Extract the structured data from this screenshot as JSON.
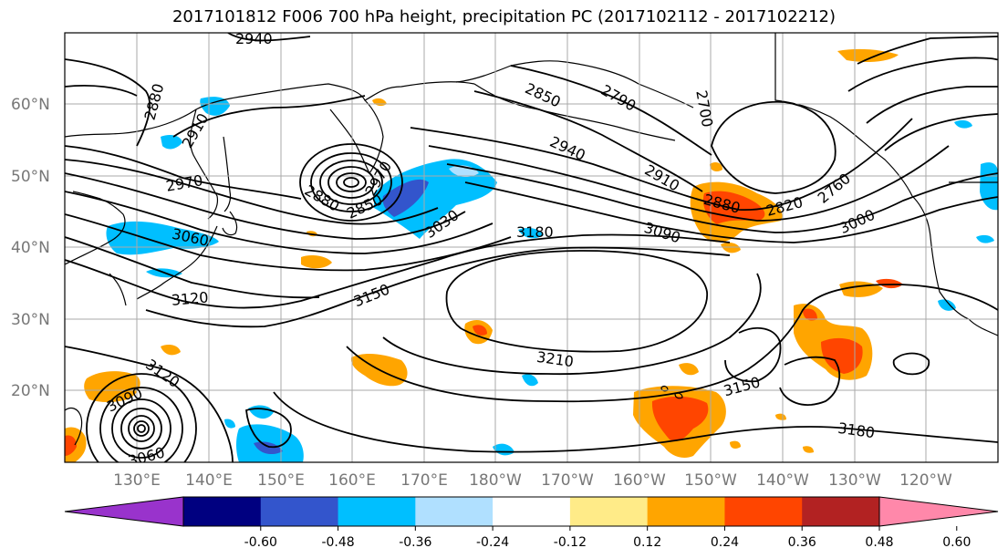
{
  "title": "2017101812 F006 700 hPa height, precipitation PC (2017102112 - 2017102212)",
  "lat_labels": [
    "60°N",
    "50°N",
    "40°N",
    "30°N",
    "20°N"
  ],
  "lon_labels": [
    "130°E",
    "140°E",
    "150°E",
    "160°E",
    "170°E",
    "180°W",
    "170°W",
    "160°W",
    "150°W",
    "140°W",
    "130°W",
    "120°W"
  ],
  "colorbar": {
    "colors": [
      "#9933cc",
      "#000080",
      "#3355cc",
      "#00bfff",
      "#b0e0ff",
      "#ffffff",
      "#ffeb88",
      "#ffa500",
      "#ff4500",
      "#b22222",
      "#ff88aa"
    ],
    "tick_labels": [
      "-0.60",
      "-0.48",
      "-0.36",
      "-0.24",
      "-0.12",
      "0.12",
      "0.24",
      "0.36",
      "0.48",
      "0.60"
    ]
  },
  "contour_labels": [
    "2940",
    "2880",
    "2910",
    "2850",
    "2790",
    "2700",
    "2940",
    "2910",
    "2880",
    "2820",
    "2760",
    "2970",
    "2880",
    "2850",
    "2970",
    "3030",
    "3060",
    "3000",
    "3180",
    "3090",
    "3150",
    "3120",
    "3210",
    "3150",
    "3120",
    "3090",
    "3180",
    "3060"
  ],
  "colors": {
    "contour": "#000000",
    "grid": "#aaaaaa",
    "coast": "#000000"
  }
}
